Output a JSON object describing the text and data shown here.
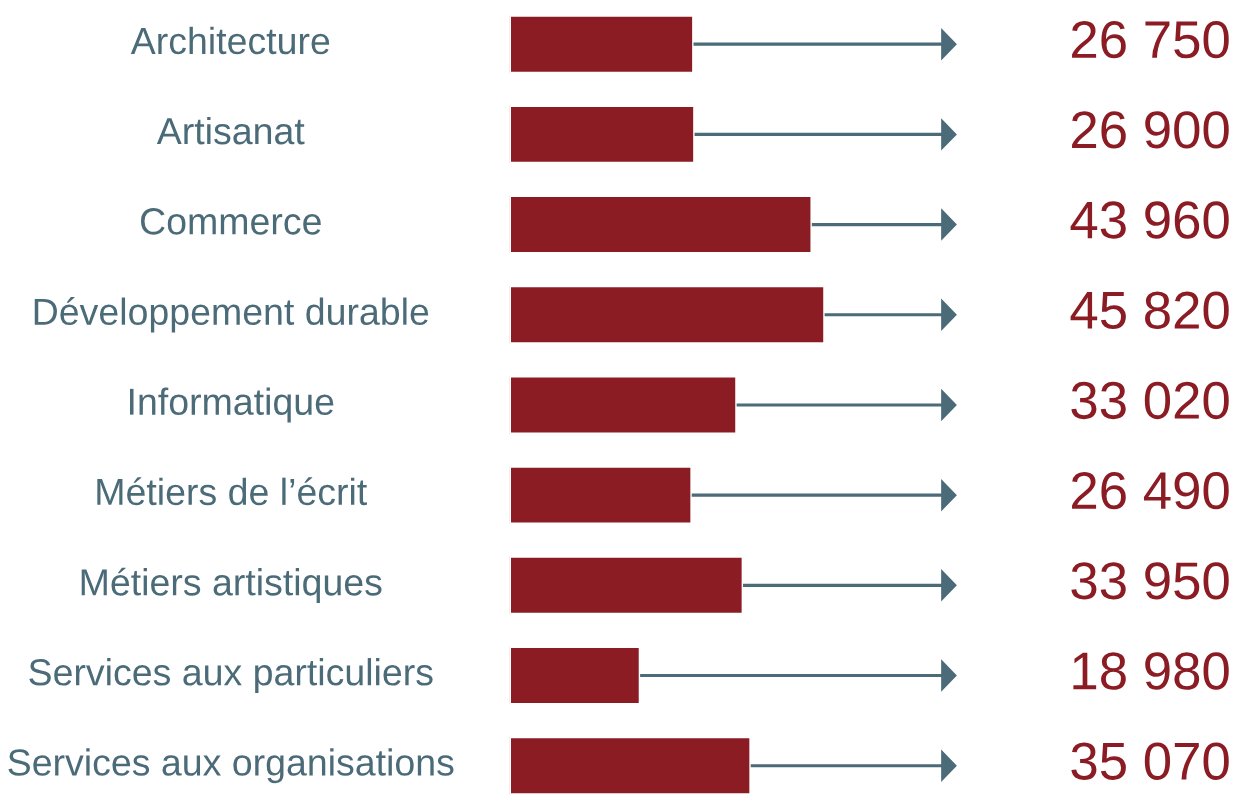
{
  "chart_data": {
    "type": "bar",
    "orientation": "horizontal",
    "categories": [
      "Architecture",
      "Artisanat",
      "Commerce",
      "Développement durable",
      "Informatique",
      "Métiers de l’écrit",
      "Métiers artistiques",
      "Services aux particuliers",
      "Services aux organisations"
    ],
    "values": [
      26750,
      26900,
      43960,
      45820,
      33020,
      26490,
      33950,
      18980,
      35070
    ],
    "value_labels": [
      "26 750",
      "26 900",
      "43 960",
      "45 820",
      "33 020",
      "26 490",
      "33 950",
      "18 980",
      "35 070"
    ],
    "color": "#8b1c24",
    "tick_labels": false
  }
}
